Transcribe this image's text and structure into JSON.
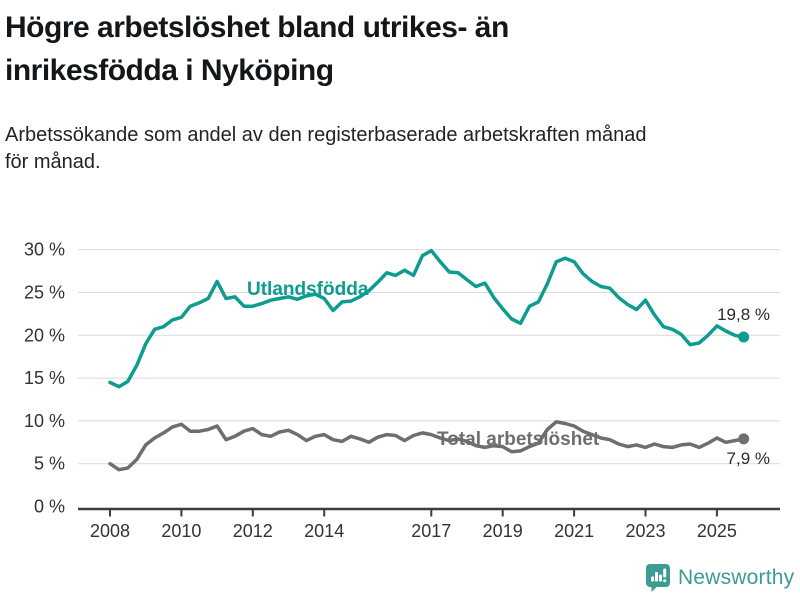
{
  "title": {
    "line1": "Högre arbetslöshet bland utrikes- än",
    "line2": "inrikesfödda i Nyköping"
  },
  "subtitle": {
    "line1": "Arbetssökande som andel av den registerbaserade arbetskraften månad",
    "line2": "för månad."
  },
  "chart_data": {
    "type": "line",
    "x_start": 2008,
    "x_step": 0.25,
    "x_ticks": [
      2008,
      2010,
      2012,
      2014,
      2017,
      2019,
      2021,
      2023,
      2025
    ],
    "y_ticks": [
      0,
      5,
      10,
      15,
      20,
      25,
      30
    ],
    "y_tick_suffix": " %",
    "ylim": [
      0,
      30
    ],
    "xlim": [
      2007.1,
      2026.7
    ],
    "grid": "horizontal",
    "legend_position": "inline-labels",
    "series": [
      {
        "name": "Utlandsfödda",
        "color": "#0d9c8f",
        "end_label": "19,8 %",
        "values": [
          14.5,
          14.0,
          14.6,
          16.5,
          19.0,
          20.7,
          21.0,
          21.8,
          22.1,
          23.4,
          23.8,
          24.3,
          26.3,
          24.3,
          24.5,
          23.4,
          23.4,
          23.7,
          24.1,
          24.3,
          24.5,
          24.2,
          24.6,
          24.8,
          24.3,
          22.9,
          23.9,
          24.0,
          24.5,
          25.2,
          26.2,
          27.3,
          27.0,
          27.6,
          27.0,
          29.3,
          29.9,
          28.6,
          27.4,
          27.3,
          26.5,
          25.7,
          26.1,
          24.4,
          23.1,
          21.9,
          21.4,
          23.4,
          23.9,
          26.0,
          28.6,
          29.0,
          28.6,
          27.2,
          26.3,
          25.7,
          25.5,
          24.4,
          23.6,
          23.0,
          24.1,
          22.4,
          21.0,
          20.7,
          20.1,
          18.9,
          19.1,
          20.0,
          21.1,
          20.5,
          20.0,
          19.8
        ]
      },
      {
        "name": "Total arbetslöshet",
        "color": "#6d6d72",
        "end_label": "7,9 %",
        "values": [
          5.0,
          4.3,
          4.5,
          5.5,
          7.2,
          8.0,
          8.6,
          9.3,
          9.6,
          8.8,
          8.8,
          9.0,
          9.4,
          7.8,
          8.2,
          8.8,
          9.1,
          8.4,
          8.2,
          8.7,
          8.9,
          8.4,
          7.7,
          8.2,
          8.4,
          7.8,
          7.6,
          8.2,
          7.9,
          7.5,
          8.1,
          8.4,
          8.3,
          7.7,
          8.3,
          8.6,
          8.4,
          8.0,
          7.7,
          7.9,
          7.6,
          7.1,
          6.9,
          7.1,
          7.0,
          6.4,
          6.5,
          7.0,
          7.4,
          9.0,
          9.9,
          9.7,
          9.4,
          8.8,
          8.4,
          8.0,
          7.8,
          7.3,
          7.0,
          7.2,
          6.9,
          7.3,
          7.0,
          6.9,
          7.2,
          7.3,
          6.9,
          7.4,
          8.0,
          7.5,
          7.7,
          7.9
        ]
      }
    ]
  },
  "footer": {
    "brand": "Newsworthy",
    "brand_color": "#3b9c93",
    "logo_icon": "bar-chart-speech-bubble-icon"
  }
}
